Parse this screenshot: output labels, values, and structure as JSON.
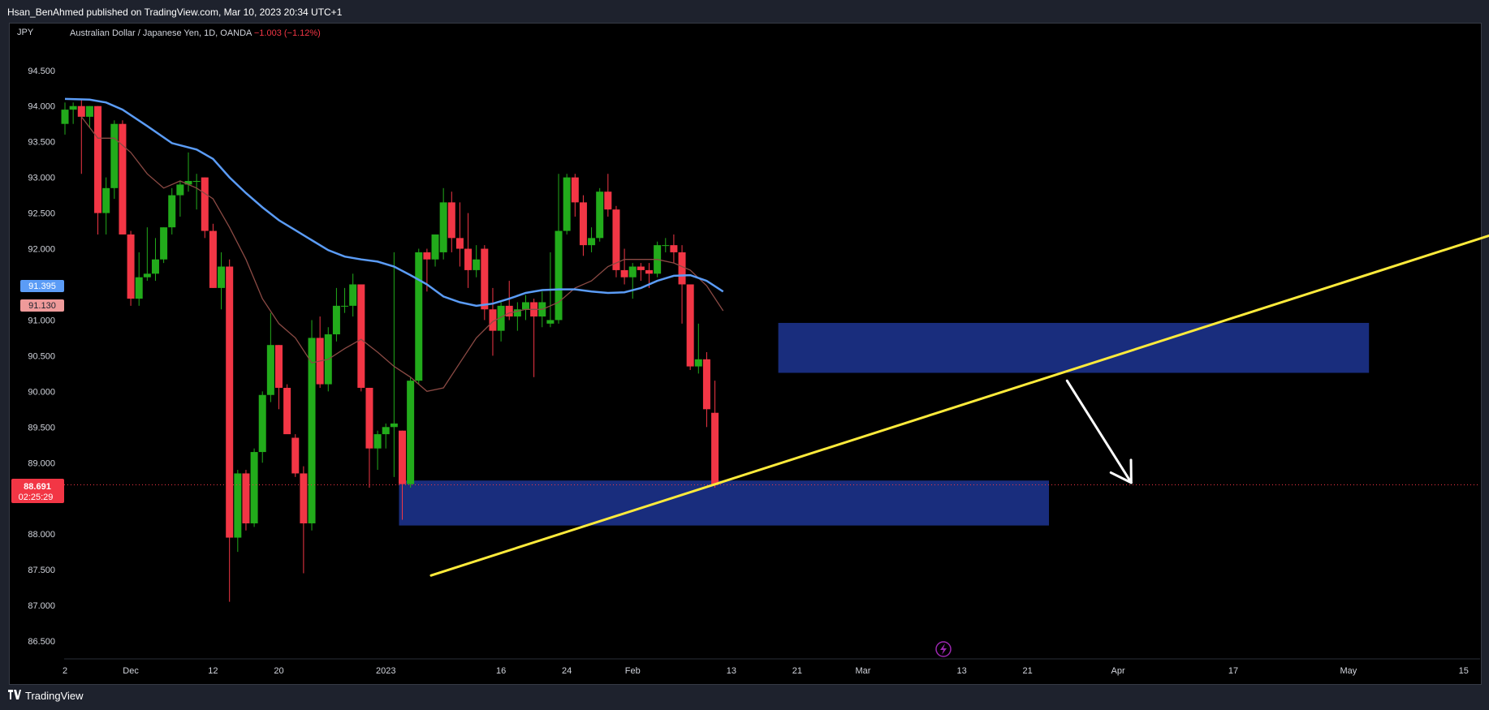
{
  "header": {
    "published": "Hsan_BenAhmed published on TradingView.com, Mar 10, 2023 20:34 UTC+1"
  },
  "legend": {
    "symbol": "Australian Dollar / Japanese Yen, 1D, OANDA",
    "change": "−1.003 (−1.12%)"
  },
  "price_axis": {
    "unit": "JPY"
  },
  "badges": {
    "ma_blue": "91.395",
    "ma_red": "91.130",
    "last_price": "88.691",
    "countdown": "02:25:29"
  },
  "footer": {
    "brand": "TradingView",
    "logo": "TV-logo-icon"
  },
  "colors": {
    "up": "#22ab1b",
    "down": "#f23645",
    "ma_long": "#5b9cf6",
    "ma_short": "#8b4a44",
    "zone": "#1a2f84",
    "trendline": "#ffeb3b",
    "arrow": "#ffffff"
  },
  "chart_data": {
    "type": "candlestick",
    "title": "Australian Dollar / Japanese Yen, 1D, OANDA",
    "y_ticks": [
      "94.500",
      "94.000",
      "93.500",
      "93.000",
      "92.500",
      "92.000",
      "91.500",
      "91.000",
      "90.500",
      "90.000",
      "89.500",
      "89.000",
      "88.000",
      "87.500",
      "87.000",
      "86.500"
    ],
    "x_ticks": [
      {
        "label": "2",
        "day": 0
      },
      {
        "label": "Dec",
        "day": 8
      },
      {
        "label": "12",
        "day": 18
      },
      {
        "label": "20",
        "day": 26
      },
      {
        "label": "2023",
        "day": 39
      },
      {
        "label": "16",
        "day": 53
      },
      {
        "label": "24",
        "day": 61
      },
      {
        "label": "Feb",
        "day": 69
      },
      {
        "label": "13",
        "day": 81
      },
      {
        "label": "21",
        "day": 89
      },
      {
        "label": "Mar",
        "day": 97
      },
      {
        "label": "13",
        "day": 109
      },
      {
        "label": "21",
        "day": 117
      },
      {
        "label": "Apr",
        "day": 128
      },
      {
        "label": "17",
        "day": 142
      },
      {
        "label": "May",
        "day": 156
      },
      {
        "label": "15",
        "day": 170
      }
    ],
    "ylim": [
      86.25,
      94.85
    ],
    "xlim": [
      -0.1,
      172
    ],
    "candles": [
      {
        "d": 0,
        "o": 93.75,
        "h": 94.05,
        "l": 93.6,
        "c": 93.95
      },
      {
        "d": 1,
        "o": 93.95,
        "h": 94.05,
        "l": 93.75,
        "c": 94.0
      },
      {
        "d": 2,
        "o": 94.0,
        "h": 94.1,
        "l": 93.05,
        "c": 93.85
      },
      {
        "d": 3,
        "o": 93.85,
        "h": 94.0,
        "l": 93.7,
        "c": 94.0
      },
      {
        "d": 4,
        "o": 94.0,
        "h": 94.0,
        "l": 92.2,
        "c": 92.5
      },
      {
        "d": 5,
        "o": 92.5,
        "h": 93.0,
        "l": 92.2,
        "c": 92.85
      },
      {
        "d": 6,
        "o": 92.85,
        "h": 93.8,
        "l": 92.7,
        "c": 93.75
      },
      {
        "d": 7,
        "o": 93.75,
        "h": 93.8,
        "l": 92.2,
        "c": 92.2
      },
      {
        "d": 8,
        "o": 92.2,
        "h": 92.25,
        "l": 91.2,
        "c": 91.3
      },
      {
        "d": 9,
        "o": 91.3,
        "h": 91.95,
        "l": 91.2,
        "c": 91.6
      },
      {
        "d": 10,
        "o": 91.6,
        "h": 92.3,
        "l": 91.55,
        "c": 91.65
      },
      {
        "d": 11,
        "o": 91.65,
        "h": 92.15,
        "l": 91.55,
        "c": 91.85
      },
      {
        "d": 12,
        "o": 91.85,
        "h": 92.3,
        "l": 91.8,
        "c": 92.3
      },
      {
        "d": 13,
        "o": 92.3,
        "h": 92.85,
        "l": 92.2,
        "c": 92.75
      },
      {
        "d": 14,
        "o": 92.75,
        "h": 92.95,
        "l": 92.45,
        "c": 92.9
      },
      {
        "d": 15,
        "o": 92.9,
        "h": 93.35,
        "l": 92.8,
        "c": 92.95
      },
      {
        "d": 16,
        "o": 92.95,
        "h": 93.05,
        "l": 92.55,
        "c": 92.95
      },
      {
        "d": 17,
        "o": 93.0,
        "h": 93.0,
        "l": 92.15,
        "c": 92.25
      },
      {
        "d": 18,
        "o": 92.25,
        "h": 92.35,
        "l": 91.45,
        "c": 91.45
      },
      {
        "d": 19,
        "o": 91.45,
        "h": 91.95,
        "l": 91.15,
        "c": 91.75
      },
      {
        "d": 20,
        "o": 91.75,
        "h": 91.85,
        "l": 87.05,
        "c": 87.95
      },
      {
        "d": 21,
        "o": 87.95,
        "h": 88.9,
        "l": 87.75,
        "c": 88.85
      },
      {
        "d": 22,
        "o": 88.85,
        "h": 88.9,
        "l": 88.05,
        "c": 88.15
      },
      {
        "d": 23,
        "o": 88.15,
        "h": 89.2,
        "l": 88.1,
        "c": 89.15
      },
      {
        "d": 24,
        "o": 89.15,
        "h": 90.0,
        "l": 89.0,
        "c": 89.95
      },
      {
        "d": 25,
        "o": 89.95,
        "h": 91.1,
        "l": 89.85,
        "c": 90.65
      },
      {
        "d": 26,
        "o": 90.65,
        "h": 90.65,
        "l": 89.75,
        "c": 90.05
      },
      {
        "d": 27,
        "o": 90.05,
        "h": 90.1,
        "l": 89.45,
        "c": 89.4
      },
      {
        "d": 28,
        "o": 89.35,
        "h": 89.4,
        "l": 88.8,
        "c": 88.85
      },
      {
        "d": 29,
        "o": 88.85,
        "h": 88.95,
        "l": 87.45,
        "c": 88.15
      },
      {
        "d": 30,
        "o": 88.15,
        "h": 91.0,
        "l": 88.05,
        "c": 90.75
      },
      {
        "d": 31,
        "o": 90.75,
        "h": 91.05,
        "l": 90.05,
        "c": 90.1
      },
      {
        "d": 32,
        "o": 90.1,
        "h": 90.9,
        "l": 90.0,
        "c": 90.8
      },
      {
        "d": 33,
        "o": 90.8,
        "h": 91.45,
        "l": 90.7,
        "c": 91.2
      },
      {
        "d": 34,
        "o": 91.2,
        "h": 91.45,
        "l": 91.1,
        "c": 91.2
      },
      {
        "d": 35,
        "o": 91.2,
        "h": 91.65,
        "l": 91.05,
        "c": 91.5
      },
      {
        "d": 36,
        "o": 91.5,
        "h": 91.5,
        "l": 90.0,
        "c": 90.05
      },
      {
        "d": 37,
        "o": 90.05,
        "h": 90.05,
        "l": 88.65,
        "c": 89.2
      },
      {
        "d": 38,
        "o": 89.2,
        "h": 89.45,
        "l": 88.9,
        "c": 89.4
      },
      {
        "d": 39,
        "o": 89.4,
        "h": 89.55,
        "l": 89.2,
        "c": 89.5
      },
      {
        "d": 40,
        "o": 89.5,
        "h": 91.95,
        "l": 88.8,
        "c": 89.55
      },
      {
        "d": 41,
        "o": 89.45,
        "h": 89.45,
        "l": 88.2,
        "c": 88.7
      },
      {
        "d": 42,
        "o": 88.7,
        "h": 90.2,
        "l": 88.65,
        "c": 90.15
      },
      {
        "d": 43,
        "o": 90.15,
        "h": 92.0,
        "l": 90.1,
        "c": 91.95
      },
      {
        "d": 44,
        "o": 91.95,
        "h": 92.0,
        "l": 91.4,
        "c": 91.85
      },
      {
        "d": 45,
        "o": 91.85,
        "h": 92.2,
        "l": 91.75,
        "c": 92.2
      },
      {
        "d": 46,
        "o": 91.95,
        "h": 92.85,
        "l": 91.85,
        "c": 92.65
      },
      {
        "d": 47,
        "o": 92.65,
        "h": 92.8,
        "l": 91.95,
        "c": 92.15
      },
      {
        "d": 48,
        "o": 92.15,
        "h": 92.65,
        "l": 91.75,
        "c": 92.0
      },
      {
        "d": 49,
        "o": 92.0,
        "h": 92.5,
        "l": 91.45,
        "c": 91.7
      },
      {
        "d": 50,
        "o": 91.7,
        "h": 92.05,
        "l": 91.6,
        "c": 91.85
      },
      {
        "d": 51,
        "o": 92.0,
        "h": 92.05,
        "l": 91.0,
        "c": 91.15
      },
      {
        "d": 52,
        "o": 91.15,
        "h": 91.45,
        "l": 90.5,
        "c": 90.85
      },
      {
        "d": 53,
        "o": 90.85,
        "h": 91.25,
        "l": 90.7,
        "c": 91.2
      },
      {
        "d": 54,
        "o": 91.2,
        "h": 91.55,
        "l": 91.0,
        "c": 91.05
      },
      {
        "d": 55,
        "o": 91.05,
        "h": 91.25,
        "l": 90.85,
        "c": 91.15
      },
      {
        "d": 56,
        "o": 91.15,
        "h": 91.35,
        "l": 91.0,
        "c": 91.25
      },
      {
        "d": 57,
        "o": 91.25,
        "h": 91.3,
        "l": 90.2,
        "c": 91.05
      },
      {
        "d": 58,
        "o": 91.05,
        "h": 91.4,
        "l": 90.9,
        "c": 91.25
      },
      {
        "d": 59,
        "o": 90.95,
        "h": 91.95,
        "l": 90.9,
        "c": 91.0
      },
      {
        "d": 60,
        "o": 91.0,
        "h": 93.05,
        "l": 90.95,
        "c": 92.25
      },
      {
        "d": 61,
        "o": 92.25,
        "h": 93.05,
        "l": 92.2,
        "c": 93.0
      },
      {
        "d": 62,
        "o": 93.0,
        "h": 93.05,
        "l": 92.45,
        "c": 92.65
      },
      {
        "d": 63,
        "o": 92.65,
        "h": 92.75,
        "l": 91.9,
        "c": 92.05
      },
      {
        "d": 64,
        "o": 92.05,
        "h": 92.3,
        "l": 91.95,
        "c": 92.15
      },
      {
        "d": 65,
        "o": 92.15,
        "h": 92.85,
        "l": 92.1,
        "c": 92.8
      },
      {
        "d": 66,
        "o": 92.8,
        "h": 93.05,
        "l": 92.45,
        "c": 92.55
      },
      {
        "d": 67,
        "o": 92.55,
        "h": 92.6,
        "l": 91.6,
        "c": 91.7
      },
      {
        "d": 68,
        "o": 91.7,
        "h": 92.0,
        "l": 91.5,
        "c": 91.6
      },
      {
        "d": 69,
        "o": 91.6,
        "h": 91.8,
        "l": 91.3,
        "c": 91.75
      },
      {
        "d": 70,
        "o": 91.75,
        "h": 91.8,
        "l": 91.55,
        "c": 91.7
      },
      {
        "d": 71,
        "o": 91.7,
        "h": 91.8,
        "l": 91.45,
        "c": 91.65
      },
      {
        "d": 72,
        "o": 91.65,
        "h": 92.1,
        "l": 91.6,
        "c": 92.05
      },
      {
        "d": 73,
        "o": 92.05,
        "h": 92.15,
        "l": 91.95,
        "c": 92.05
      },
      {
        "d": 74,
        "o": 92.05,
        "h": 92.2,
        "l": 91.8,
        "c": 91.95
      },
      {
        "d": 75,
        "o": 91.95,
        "h": 92.05,
        "l": 90.95,
        "c": 91.5
      },
      {
        "d": 76,
        "o": 91.5,
        "h": 91.5,
        "l": 90.3,
        "c": 90.35
      },
      {
        "d": 77,
        "o": 90.35,
        "h": 90.95,
        "l": 90.25,
        "c": 90.45
      },
      {
        "d": 78,
        "o": 90.45,
        "h": 90.55,
        "l": 89.5,
        "c": 89.75
      },
      {
        "d": 79,
        "o": 89.7,
        "h": 90.15,
        "l": 88.65,
        "c": 88.69
      }
    ],
    "ma_long": {
      "d": [
        0,
        3,
        5,
        7,
        10,
        13,
        16,
        18,
        20,
        22,
        24,
        26,
        28,
        30,
        32,
        34,
        36,
        38,
        40,
        42,
        44,
        46,
        48,
        50,
        52,
        54,
        56,
        58,
        60,
        62,
        64,
        66,
        68,
        70,
        72,
        74,
        76,
        78,
        80
      ],
      "v": [
        94.1,
        94.09,
        94.05,
        93.95,
        93.72,
        93.48,
        93.39,
        93.26,
        93.0,
        92.78,
        92.58,
        92.4,
        92.26,
        92.12,
        91.98,
        91.89,
        91.85,
        91.82,
        91.75,
        91.63,
        91.5,
        91.33,
        91.25,
        91.2,
        91.23,
        91.3,
        91.38,
        91.42,
        91.43,
        91.43,
        91.4,
        91.38,
        91.39,
        91.45,
        91.55,
        91.62,
        91.63,
        91.55,
        91.4
      ]
    },
    "ma_short": {
      "d": [
        2,
        4,
        6,
        8,
        10,
        12,
        14,
        16,
        18,
        20,
        22,
        24,
        26,
        28,
        30,
        32,
        34,
        36,
        38,
        40,
        42,
        44,
        46,
        48,
        50,
        52,
        54,
        56,
        58,
        60,
        62,
        64,
        66,
        68,
        70,
        72,
        74,
        76,
        78,
        80
      ],
      "v": [
        93.85,
        93.55,
        93.55,
        93.35,
        93.05,
        92.85,
        92.95,
        92.85,
        92.7,
        92.3,
        91.85,
        91.3,
        90.95,
        90.75,
        90.4,
        90.45,
        90.6,
        90.73,
        90.55,
        90.35,
        90.2,
        90.0,
        90.05,
        90.4,
        90.75,
        90.98,
        91.1,
        91.15,
        91.15,
        91.25,
        91.45,
        91.55,
        91.75,
        91.85,
        91.85,
        91.85,
        91.8,
        91.7,
        91.48,
        91.13
      ]
    },
    "zones": [
      {
        "d1": 40.6,
        "d2": 119.6,
        "y1": 88.12,
        "y2": 88.75
      },
      {
        "d1": 86.7,
        "d2": 158.5,
        "y1": 90.26,
        "y2": 90.96
      }
    ],
    "trendline": {
      "d1": 44.5,
      "y1": 87.42,
      "d2": 178.4,
      "y2": 92.38
    },
    "arrow": {
      "d1": 121.8,
      "y1": 90.15,
      "d2": 129.6,
      "y2": 88.72
    }
  }
}
